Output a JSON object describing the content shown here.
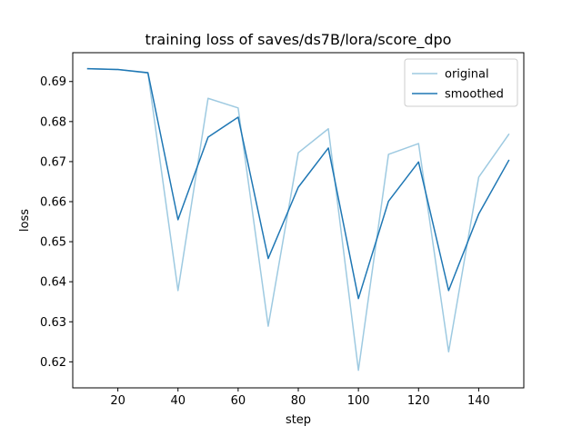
{
  "chart_data": {
    "type": "line",
    "title": "training loss of saves/ds7B/lora/score_dpo",
    "xlabel": "step",
    "ylabel": "loss",
    "xlim": [
      5,
      155
    ],
    "ylim": [
      0.6135,
      0.6972
    ],
    "xticks": [
      20,
      40,
      60,
      80,
      100,
      120,
      140
    ],
    "xtick_labels": [
      "20",
      "40",
      "60",
      "80",
      "100",
      "120",
      "140"
    ],
    "yticks": [
      0.62,
      0.63,
      0.64,
      0.65,
      0.66,
      0.67,
      0.68,
      0.69
    ],
    "ytick_labels": [
      "0.62",
      "0.63",
      "0.64",
      "0.65",
      "0.66",
      "0.67",
      "0.68",
      "0.69"
    ],
    "grid": false,
    "legend_position": "top-right",
    "x": [
      10,
      20,
      30,
      40,
      50,
      60,
      70,
      80,
      90,
      100,
      110,
      120,
      130,
      140,
      150
    ],
    "series": [
      {
        "name": "original",
        "color": "#9ecae1",
        "values": [
          0.6932,
          0.693,
          0.6921,
          0.6378,
          0.6858,
          0.6834,
          0.6289,
          0.6722,
          0.6782,
          0.6179,
          0.6718,
          0.6745,
          0.6225,
          0.6661,
          0.6768
        ]
      },
      {
        "name": "smoothed",
        "color": "#1f77b4",
        "values": [
          0.6932,
          0.693,
          0.6922,
          0.6555,
          0.6761,
          0.6811,
          0.6458,
          0.6636,
          0.6734,
          0.6358,
          0.6601,
          0.6699,
          0.6378,
          0.6569,
          0.6703
        ]
      }
    ]
  }
}
